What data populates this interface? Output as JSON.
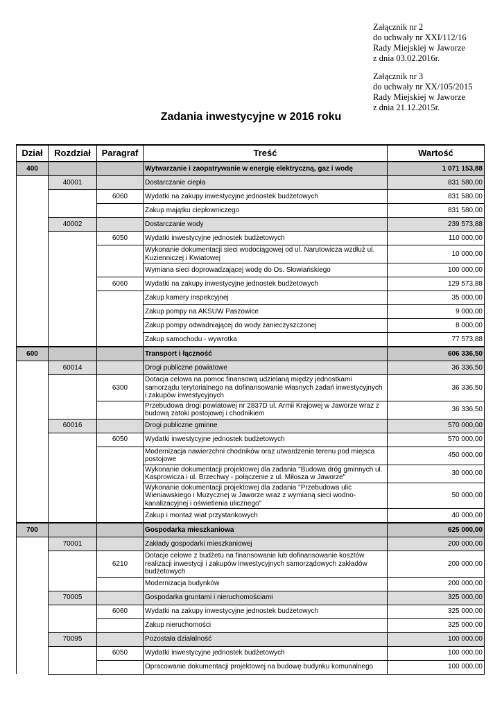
{
  "annex": [
    [
      "Załącznik nr 2",
      "do uchwały nr XXI/112/16",
      "Rady Miejskiej w Jaworze",
      "z dnia 03.02.2016r."
    ],
    [
      "Załącznik nr 3",
      "do uchwały nr XX/105/2015",
      "Rady Miejskiej w Jaworze",
      "z dnia 21.12.2015r."
    ]
  ],
  "title": "Zadania inwestycyjne w 2016 roku",
  "headers": [
    "Dział",
    "Rozdział",
    "Paragraf",
    "Treść",
    "Wartość"
  ],
  "colors": {
    "section_bg": "#c8c8c8",
    "chapter_bg": "#dcdcdc"
  },
  "sections": [
    {
      "dzial": "400",
      "title": "Wytwarzanie i zaopatrywanie w energię elektryczną, gaz i wodę",
      "value": "1 071 153,88",
      "chapters": [
        {
          "rozdzial": "40001",
          "title": "Dostarczanie ciepła",
          "value": "831 580,00",
          "paragraphs": [
            {
              "paragraf": "6060",
              "title": "Wydatki na zakupy inwestycyjne jednostek budżetowych",
              "value": "831 580,00",
              "tasks": [
                {
                  "title": "Zakup majątku ciepłowniczego",
                  "value": "831 580,00"
                }
              ]
            }
          ]
        },
        {
          "rozdzial": "40002",
          "title": "Dostarczanie wody",
          "value": "239 573,88",
          "paragraphs": [
            {
              "paragraf": "6050",
              "title": "Wydatki inwestycyjne jednostek budżetowych",
              "value": "110 000,00",
              "tasks": [
                {
                  "title": "Wykonanie dokumentacji sieci wodociągowej od ul. Narutowicza wzdłuż ul. Kuzienniczej i Kwiatowej",
                  "value": "10 000,00"
                },
                {
                  "title": "Wymiana sieci doprowadzającej wodę do Os. Słowiańskiego",
                  "value": "100 000,00"
                }
              ]
            },
            {
              "paragraf": "6060",
              "title": "Wydatki na zakupy inwestycyjne jednostek budżetowych",
              "value": "129 573,88",
              "tasks": [
                {
                  "title": "Zakup kamery inspekcyjnej",
                  "value": "35 000,00"
                },
                {
                  "title": "Zakup pompy na AKSUW Paszowice",
                  "value": "9 000,00"
                },
                {
                  "title": "Zakup pompy odwadniającej do wody zanieczyszczonej",
                  "value": "8 000,00"
                },
                {
                  "title": "Zakup samochodu - wywrotka",
                  "value": "77 573,88"
                }
              ]
            }
          ]
        }
      ]
    },
    {
      "dzial": "600",
      "title": "Transport i łączność",
      "value": "606 336,50",
      "chapters": [
        {
          "rozdzial": "60014",
          "title": "Drogi publiczne powiatowe",
          "value": "36 336,50",
          "paragraphs": [
            {
              "paragraf": "6300",
              "title": "Dotacja celowa na pomoc finansową udzielaną między jednostkami samorządu terytorialnego na dofinansowanie własnych zadań inwestycyjnych i zakupów inwestycyjnych",
              "value": "36 336,50",
              "tasks": [
                {
                  "title": "Przebudowa drogi powiatowej nr 2837D ul. Armii Krajowej w Jaworze wraz z budową zatoki postojowej i chodnikiem",
                  "value": "36 336,50"
                }
              ]
            }
          ]
        },
        {
          "rozdzial": "60016",
          "title": "Drogi publiczne gminne",
          "value": "570 000,00",
          "paragraphs": [
            {
              "paragraf": "6050",
              "title": "Wydatki inwestycyjne jednostek budżetowych",
              "value": "570 000,00",
              "tasks": [
                {
                  "title": "Modernizacja nawierzchni chodników oraz utwardzenie terenu pod miejsca postojowe",
                  "value": "450 000,00"
                },
                {
                  "title": "Wykonanie dokumentacji projektowej dla zadania   \"Budowa dróg gminnych ul. Kasprowicza i ul. Brzechwy - połączenie z ul. Miłosza w Jaworze\"",
                  "value": "30 000,00"
                },
                {
                  "title": "Wykonanie dokumentacji projektowej dla zadania \"Przebudowa ulic Wieniawskiego i Muzycznej w Jaworze wraz z wymianą sieci wodno-kanalizacyjnej i oświetlenia ulicznego\"",
                  "value": "50 000,00"
                },
                {
                  "title": "Zakup i montaż wiat przystankowych",
                  "value": "40 000,00"
                }
              ]
            }
          ]
        }
      ]
    },
    {
      "dzial": "700",
      "title": "Gospodarka mieszkaniowa",
      "value": "625 000,00",
      "chapters": [
        {
          "rozdzial": "70001",
          "title": "Zakłady gospodarki mieszkaniowej",
          "value": "200 000,00",
          "paragraphs": [
            {
              "paragraf": "6210",
              "title": "Dotacje celowe z budżetu na finansowanie lub dofinansowanie kosztów realizacji inwestycji i zakupów inwestycyjnych samorządowych zakładów budżetowych",
              "value": "200 000,00",
              "tasks": [
                {
                  "title": "Modernizacja budynków",
                  "value": "200 000,00"
                }
              ]
            }
          ]
        },
        {
          "rozdzial": "70005",
          "title": "Gospodarka gruntami i nieruchomościami",
          "value": "325 000,00",
          "paragraphs": [
            {
              "paragraf": "6060",
              "title": "Wydatki na zakupy inwestycyjne jednostek budżetowych",
              "value": "325 000,00",
              "tasks": [
                {
                  "title": "Zakup nieruchomości",
                  "value": "325 000,00"
                }
              ]
            }
          ]
        },
        {
          "rozdzial": "70095",
          "title": "Pozostała działalność",
          "value": "100 000,00",
          "paragraphs": [
            {
              "paragraf": "6050",
              "title": "Wydatki inwestycyjne jednostek budżetowych",
              "value": "100 000,00",
              "tasks": [
                {
                  "title": "Opracowanie dokumentacji projektowej na budowę budynku komunalnego",
                  "value": "100 000,00"
                }
              ]
            }
          ]
        }
      ]
    }
  ]
}
